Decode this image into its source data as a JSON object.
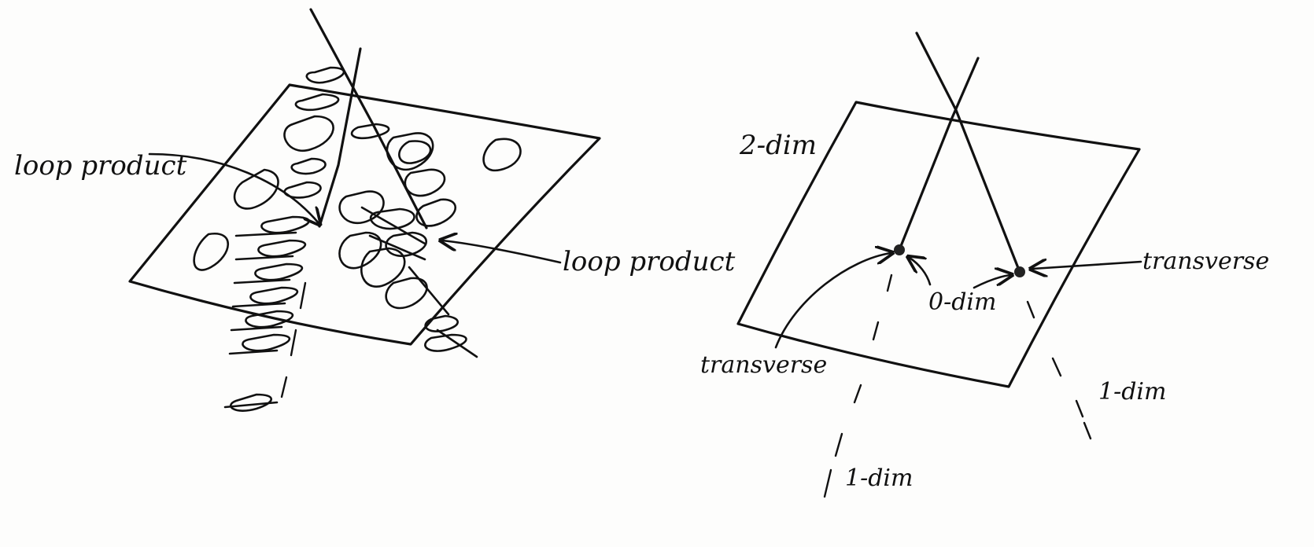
{
  "left_figure": {
    "label_left": "loop product",
    "label_right": "loop product"
  },
  "right_figure": {
    "label_plane": "2-dim",
    "label_transverse_left": "transverse",
    "label_transverse_right": "transverse",
    "label_point": "0-dim",
    "label_line_right": "1-dim",
    "label_line_bottom": "1-dim"
  }
}
